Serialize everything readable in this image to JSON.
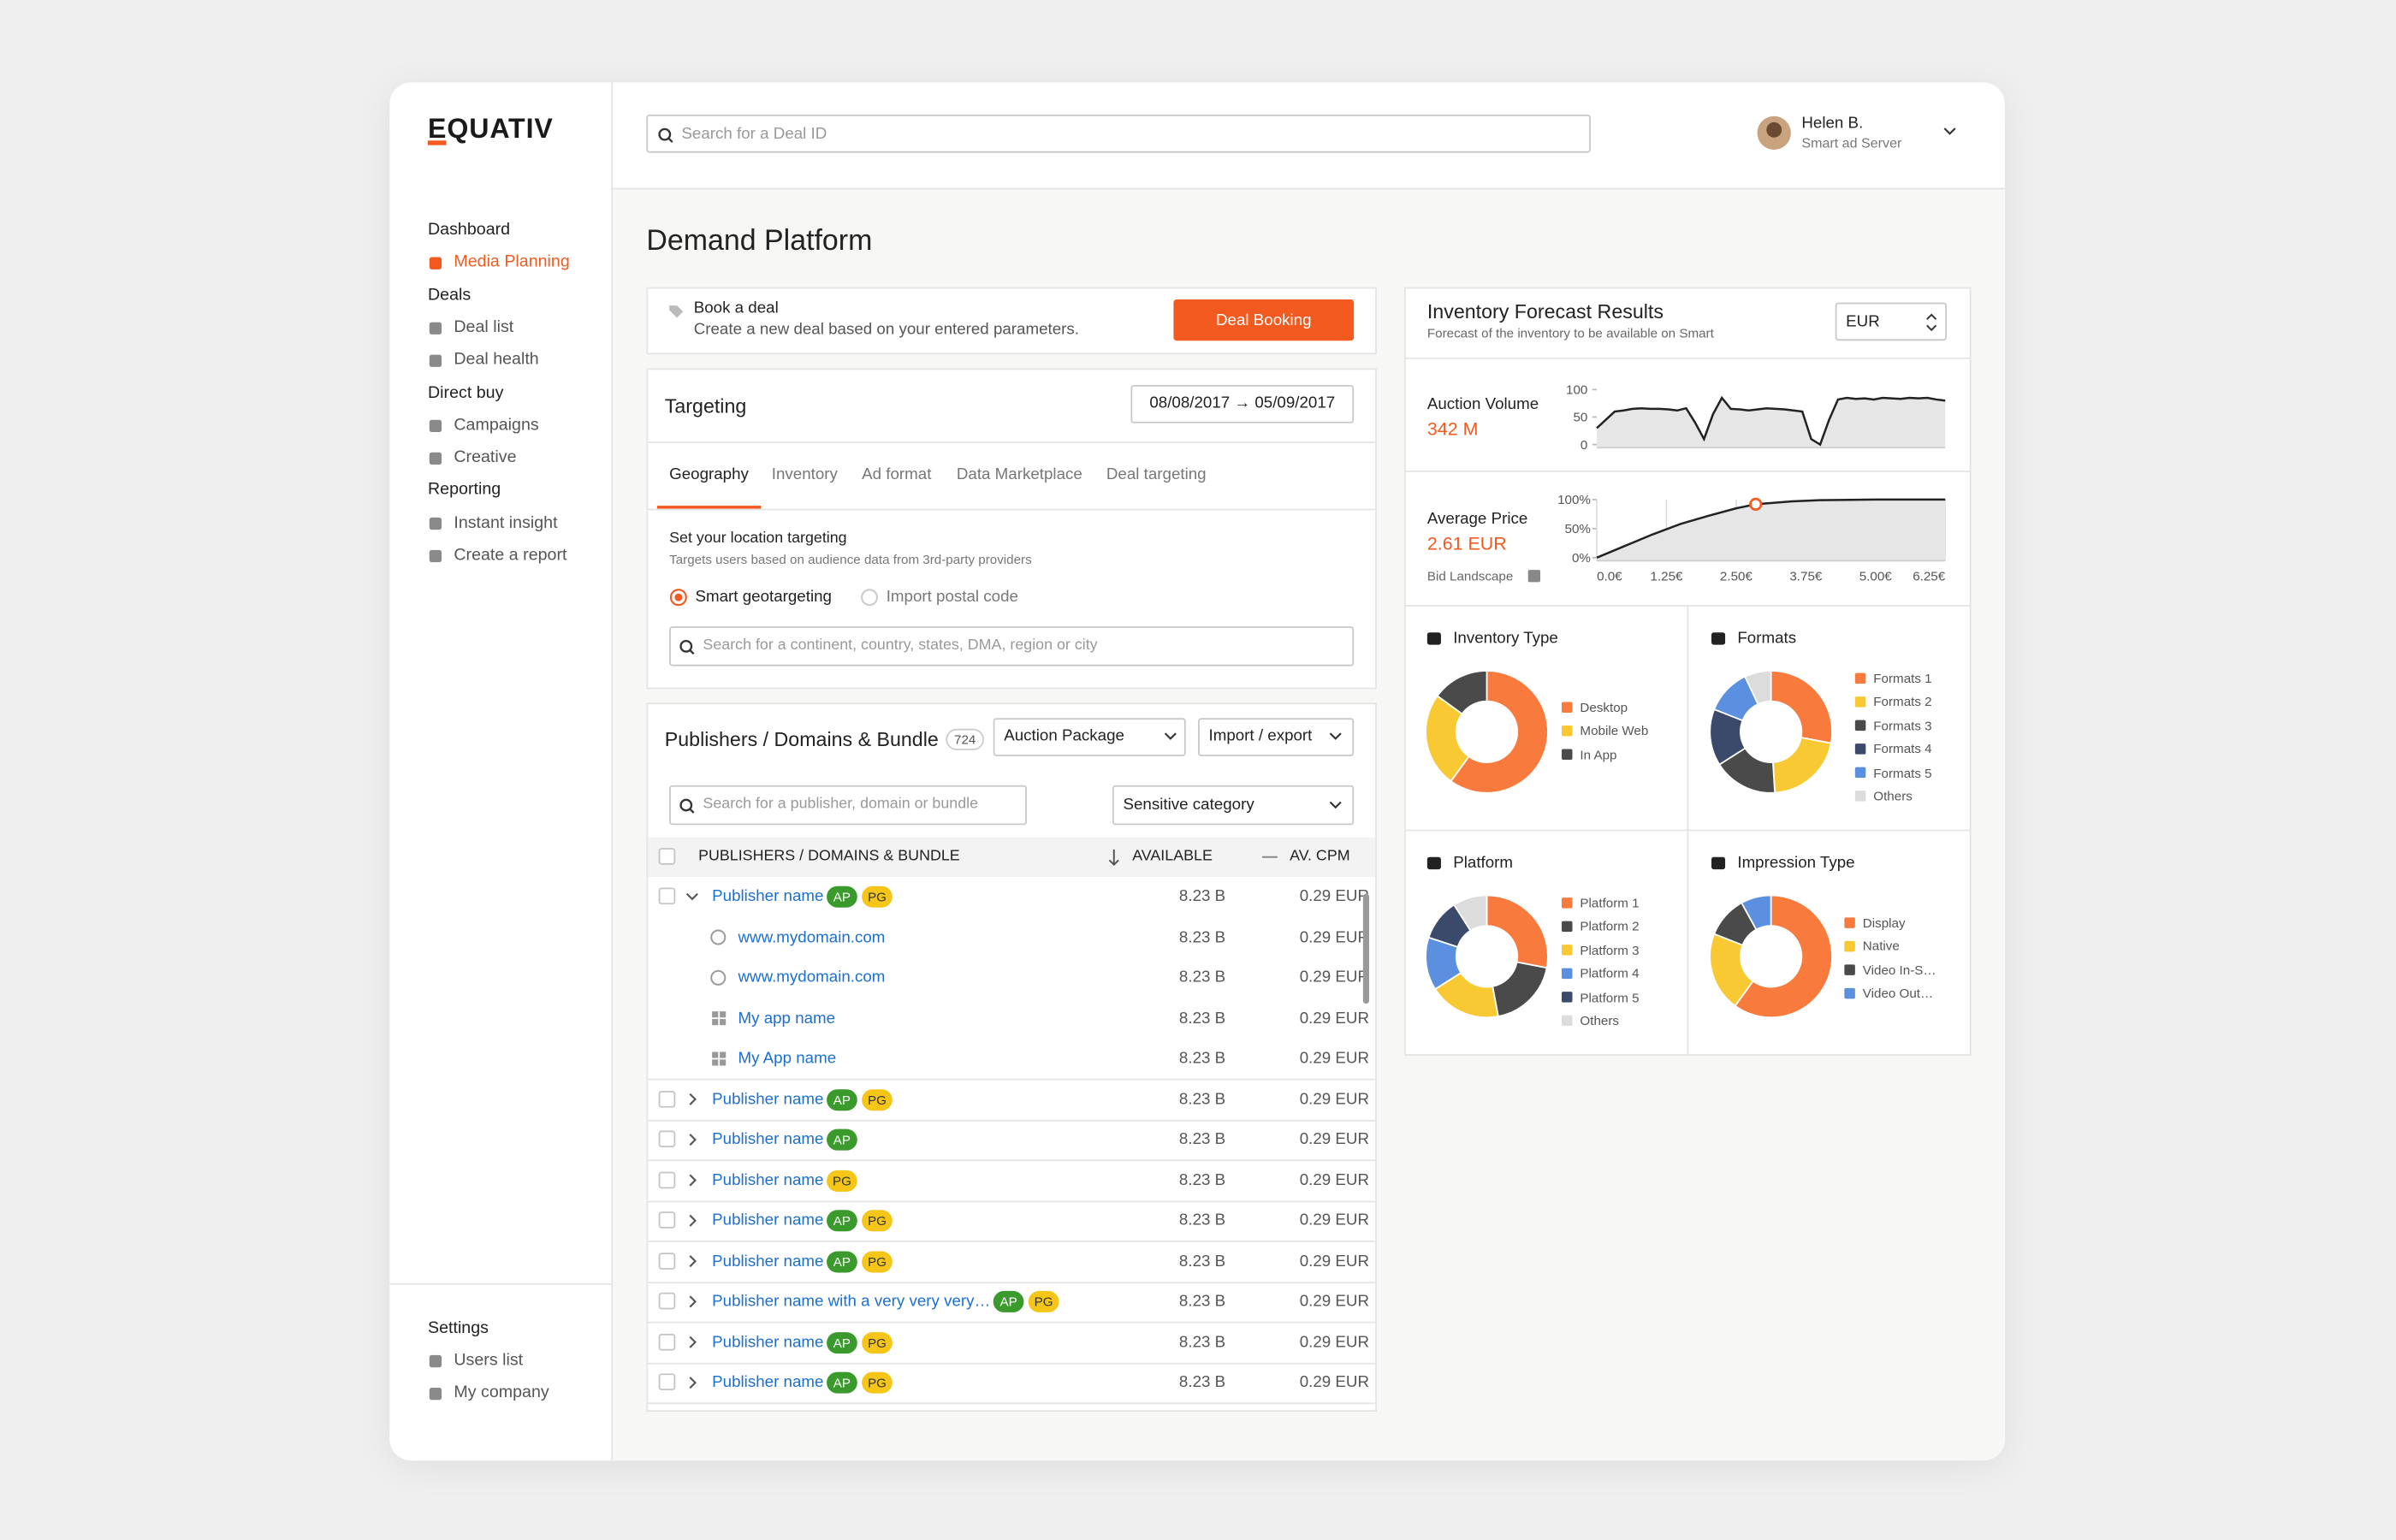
{
  "brand": "EQUATIV",
  "search_placeholder": "Search for a Deal ID",
  "user": {
    "name": "Helen B.",
    "role": "Smart ad Server"
  },
  "nav": [
    {
      "title": "Dashboard",
      "items": [
        {
          "label": "Media Planning",
          "active": true
        }
      ]
    },
    {
      "title": "Deals",
      "items": [
        {
          "label": "Deal list"
        },
        {
          "label": "Deal health"
        }
      ]
    },
    {
      "title": "Direct buy",
      "items": [
        {
          "label": "Campaigns"
        },
        {
          "label": "Creative"
        }
      ]
    },
    {
      "title": "Reporting",
      "items": [
        {
          "label": "Instant insight"
        },
        {
          "label": "Create a report"
        }
      ]
    }
  ],
  "settings": {
    "title": "Settings",
    "items": [
      {
        "label": "Users list"
      },
      {
        "label": "My company"
      }
    ]
  },
  "page_title": "Demand Platform",
  "book": {
    "title": "Book a deal",
    "description": "Create a new deal based on your entered parameters.",
    "button": "Deal Booking"
  },
  "targeting": {
    "title": "Targeting",
    "date_range": "08/08/2017 → 05/09/2017",
    "tabs": [
      "Geography",
      "Inventory",
      "Ad format",
      "Data Marketplace",
      "Deal targeting"
    ],
    "active_tab": 0,
    "heading": "Set your location targeting",
    "description": "Targets users based on audience data from 3rd-party providers",
    "options": [
      "Smart geotargeting",
      "Import postal code"
    ],
    "selected_option": 0,
    "search_placeholder": "Search for a continent, country, states, DMA, region or city"
  },
  "publishers": {
    "title": "Publishers / Domains & Bundle",
    "count": 724,
    "package_select": "Auction Package",
    "import_export": "Import / export",
    "search_placeholder": "Search for a publisher, domain or bundle",
    "category_select": "Sensitive category",
    "columns": [
      "PUBLISHERS / DOMAINS & BUNDLE",
      "AVAILABLE",
      "AV. CPM"
    ],
    "badge_colors": {
      "AP": "#3a9a2c",
      "PG": "#f5c518"
    },
    "badge_text_colors": {
      "AP": "#ffffff",
      "PG": "#333333"
    },
    "rows": [
      {
        "name": "Publisher name",
        "badges": [
          "AP",
          "PG"
        ],
        "available": "8.23 B",
        "cpm": "0.29 EUR",
        "expanded": true,
        "children": [
          {
            "kind": "domain",
            "name": "www.mydomain.com",
            "available": "8.23 B",
            "cpm": "0.29 EUR"
          },
          {
            "kind": "domain",
            "name": "www.mydomain.com",
            "available": "8.23 B",
            "cpm": "0.29 EUR"
          },
          {
            "kind": "app",
            "name": "My app name",
            "available": "8.23 B",
            "cpm": "0.29 EUR"
          },
          {
            "kind": "app",
            "name": "My App name",
            "available": "8.23 B",
            "cpm": "0.29 EUR"
          }
        ]
      },
      {
        "name": "Publisher name",
        "badges": [
          "AP",
          "PG"
        ],
        "available": "8.23 B",
        "cpm": "0.29 EUR"
      },
      {
        "name": "Publisher name",
        "badges": [
          "AP"
        ],
        "available": "8.23 B",
        "cpm": "0.29 EUR"
      },
      {
        "name": "Publisher name",
        "badges": [
          "PG"
        ],
        "available": "8.23 B",
        "cpm": "0.29 EUR"
      },
      {
        "name": "Publisher name",
        "badges": [
          "AP",
          "PG"
        ],
        "available": "8.23 B",
        "cpm": "0.29 EUR"
      },
      {
        "name": "Publisher name",
        "badges": [
          "AP",
          "PG"
        ],
        "available": "8.23 B",
        "cpm": "0.29 EUR"
      },
      {
        "name": "Publisher name with a very very very…",
        "badges": [
          "AP",
          "PG"
        ],
        "available": "8.23 B",
        "cpm": "0.29 EUR"
      },
      {
        "name": "Publisher name",
        "badges": [
          "AP",
          "PG"
        ],
        "available": "8.23 B",
        "cpm": "0.29 EUR"
      },
      {
        "name": "Publisher name",
        "badges": [
          "AP",
          "PG"
        ],
        "available": "8.23 B",
        "cpm": "0.29 EUR"
      }
    ]
  },
  "forecast": {
    "title": "Inventory Forecast Results",
    "subtitle": "Forecast of the inventory to be available on Smart",
    "currency": "EUR"
  },
  "chart_data": [
    {
      "type": "line",
      "title": "Auction Volume",
      "subtitle": "342 M",
      "color": "#222222",
      "area_color": "#e6e6e6",
      "values": [
        30,
        45,
        60,
        62,
        65,
        66,
        65,
        65,
        64,
        62,
        66,
        40,
        10,
        55,
        85,
        65,
        64,
        62,
        64,
        66,
        65,
        64,
        62,
        60,
        10,
        0,
        45,
        82,
        85,
        83,
        84,
        82,
        85,
        84,
        83,
        85,
        84,
        85,
        82,
        80
      ],
      "ylim": [
        0,
        100
      ],
      "yticks": [
        0,
        50,
        100
      ]
    },
    {
      "type": "line",
      "title": "Average Price",
      "subtitle": "2.61 EUR",
      "note": "Bid Landscape",
      "color": "#222222",
      "area_color": "#e6e6e6",
      "grid": true,
      "x": [
        0,
        0.5,
        1,
        1.5,
        2,
        2.5,
        2.85,
        3.5,
        4,
        5,
        6.25
      ],
      "values": [
        0,
        20,
        40,
        58,
        72,
        85,
        92,
        97,
        99,
        100,
        100
      ],
      "marker_index": 6,
      "marker_color": "#f25a1f",
      "xlim": [
        0,
        6.25
      ],
      "xticks": [
        {
          "value": 0,
          "label": "0.0€"
        },
        {
          "value": 1.25,
          "label": "1.25€"
        },
        {
          "value": 2.5,
          "label": "2.50€"
        },
        {
          "value": 3.75,
          "label": "3.75€"
        },
        {
          "value": 5,
          "label": "5.00€"
        },
        {
          "value": 6.25,
          "label": "6.25€"
        }
      ],
      "ylim": [
        0,
        100
      ],
      "yticks": [
        {
          "value": 0,
          "label": "0%"
        },
        {
          "value": 50,
          "label": "50%"
        },
        {
          "value": 100,
          "label": "100%"
        }
      ]
    },
    {
      "type": "pie",
      "donut": true,
      "title": "Inventory Type",
      "categories": [
        "Desktop",
        "Mobile Web",
        "In App"
      ],
      "values": [
        60,
        25,
        15
      ],
      "colors": [
        "#f87a3c",
        "#f9c934",
        "#4a4a4a"
      ]
    },
    {
      "type": "pie",
      "donut": true,
      "title": "Formats",
      "categories": [
        "Formats 1",
        "Formats 2",
        "Formats 3",
        "Formats 4",
        "Formats 5",
        "Others"
      ],
      "values": [
        28,
        21,
        17,
        15,
        12,
        7
      ],
      "colors": [
        "#f87a3c",
        "#f9c934",
        "#4a4a4a",
        "#3b4a6b",
        "#5b8fe0",
        "#dcdcdc"
      ]
    },
    {
      "type": "pie",
      "donut": true,
      "title": "Platform",
      "categories": [
        "Platform 1",
        "Platform 2",
        "Platform 3",
        "Platform 4",
        "Platform 5",
        "Others"
      ],
      "values": [
        28,
        19,
        19,
        14,
        11,
        9
      ],
      "colors": [
        "#f87a3c",
        "#4a4a4a",
        "#f9c934",
        "#5b8fe0",
        "#3b4a6b",
        "#dcdcdc"
      ]
    },
    {
      "type": "pie",
      "donut": true,
      "title": "Impression Type",
      "categories": [
        "Display",
        "Native",
        "Video In-S…",
        "Video Out…"
      ],
      "values": [
        60,
        21,
        11,
        8
      ],
      "colors": [
        "#f87a3c",
        "#f9c934",
        "#4a4a4a",
        "#5b8fe0"
      ]
    }
  ]
}
